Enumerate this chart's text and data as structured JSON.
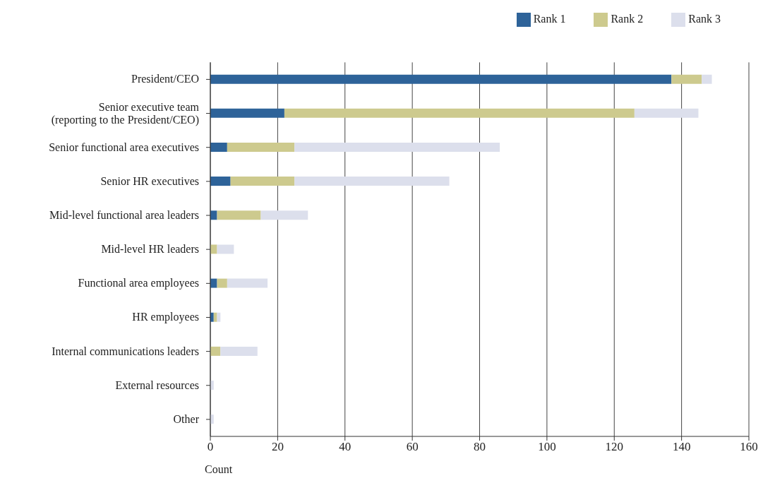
{
  "chart_data": {
    "type": "bar",
    "orientation": "horizontal",
    "stacked": true,
    "xlabel": "Count",
    "categories": [
      "President/CEO",
      "Senior executive team\n(reporting to the President/CEO)",
      "Senior functional area executives",
      "Senior HR executives",
      "Mid-level functional area leaders",
      "Mid-level HR leaders",
      "Functional area employees",
      "HR employees",
      "Internal communications leaders",
      "External resources",
      "Other"
    ],
    "series": [
      {
        "name": "Rank 1",
        "color": "#2e6399",
        "values": [
          137,
          22,
          5,
          6,
          2,
          0,
          2,
          1,
          0,
          0,
          0
        ]
      },
      {
        "name": "Rank 2",
        "color": "#cdca8e",
        "values": [
          9,
          104,
          20,
          19,
          13,
          2,
          3,
          1,
          3,
          0,
          0
        ]
      },
      {
        "name": "Rank 3",
        "color": "#dcdfec",
        "values": [
          3,
          19,
          61,
          46,
          14,
          5,
          12,
          1,
          11,
          1,
          1
        ]
      }
    ],
    "xlim": [
      0,
      160
    ],
    "xticks": [
      0,
      20,
      40,
      60,
      80,
      100,
      120,
      140,
      160
    ],
    "grid": "x",
    "legend": "top right"
  }
}
